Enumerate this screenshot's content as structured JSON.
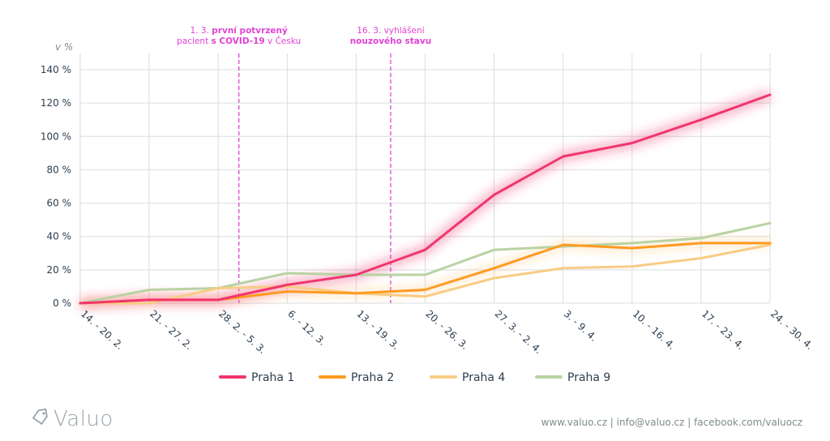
{
  "chart_data": {
    "type": "line",
    "ylabel": "v %",
    "ylim": [
      0,
      140
    ],
    "yticks": [
      "0 %",
      "20 %",
      "40 %",
      "60 %",
      "80 %",
      "100 %",
      "120 %",
      "140 %"
    ],
    "ytick_values": [
      0,
      20,
      40,
      60,
      80,
      100,
      120,
      140
    ],
    "categories": [
      "14. - 20. 2.",
      "21. - 27. 2.",
      "28. 2. - 5. 3.",
      "6. - 12. 3.",
      "13. - 19. 3.",
      "20. - 26. 3.",
      "27. 3. - 2. 4.",
      "3. - 9. 4.",
      "10. - 16. 4.",
      "17. - 23. 4.",
      "24. - 30. 4."
    ],
    "grid": true,
    "legend_position": "bottom",
    "series": [
      {
        "name": "Praha 1",
        "color": "#f0356f",
        "values": [
          0,
          2,
          2,
          11,
          17,
          32,
          65,
          88,
          96,
          110,
          125
        ]
      },
      {
        "name": "Praha 2",
        "color": "#ff9a1f",
        "values": [
          0,
          2,
          2,
          7,
          6,
          8,
          21,
          35,
          33,
          36,
          36
        ]
      },
      {
        "name": "Praha 4",
        "color": "#f8cc85",
        "values": [
          0,
          0,
          9,
          10,
          6,
          4,
          15,
          21,
          22,
          27,
          35
        ]
      },
      {
        "name": "Praha 9",
        "color": "#b9d3a3",
        "values": [
          0,
          8,
          9,
          18,
          17,
          17,
          32,
          34,
          36,
          39,
          48
        ]
      }
    ],
    "annotations": [
      {
        "category_position": 2.3,
        "date": "1. 3.",
        "text_a": "první potvrzený",
        "text_b": "pacient",
        "text_c": "s COVID-19",
        "text_d": "v Česku"
      },
      {
        "category_position": 4.5,
        "date": "16. 3.",
        "text_a": "vyhlášení",
        "text_b": "nouzového stavu"
      }
    ]
  },
  "footer": {
    "text": "www.valuo.cz | info@valuo.cz | facebook.com/valuocz"
  },
  "logo": {
    "text": "Valuo",
    "icon": "tag-icon"
  }
}
